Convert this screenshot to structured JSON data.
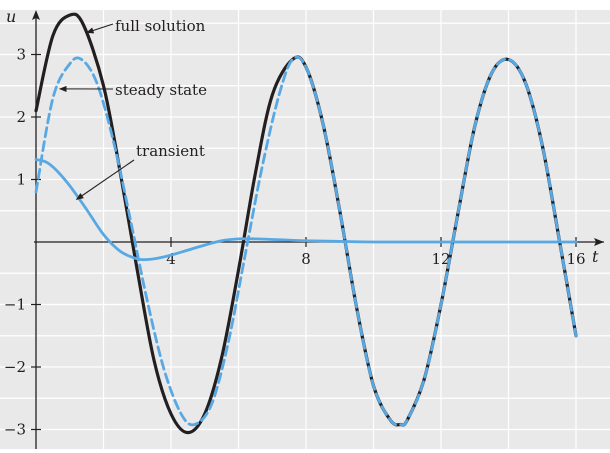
{
  "chart_data": {
    "type": "line",
    "title": "",
    "xlabel": "t",
    "ylabel": "u",
    "xlim": [
      0,
      16.8
    ],
    "ylim": [
      -3.3,
      3.6
    ],
    "x_ticks": [
      4,
      8,
      12,
      16
    ],
    "y_ticks": [
      -3,
      -2,
      -1,
      1,
      2,
      3
    ],
    "x_tick_labels": [
      "4",
      "8",
      "12",
      "16"
    ],
    "y_tick_labels": [
      "−3",
      "−2",
      "−1",
      "1",
      "2",
      "3"
    ],
    "grid": true,
    "colors": {
      "background": "#e9e9ea",
      "grid": "#ffffff",
      "full_solution": "#231f20",
      "steady_state": "#58a9e3",
      "transient": "#58a9e3",
      "axis": "#231f20"
    },
    "series": [
      {
        "name": "full solution",
        "style": "solid-black",
        "x": [
          0,
          0.5,
          1.0,
          1.4,
          2.0,
          2.5,
          3.0,
          3.5,
          4.0,
          4.5,
          5.0,
          5.5,
          6.0,
          6.5,
          7.0,
          7.6,
          8.0,
          8.5,
          9.0,
          9.5,
          10.0,
          10.5,
          10.8,
          11.0,
          11.5,
          12.0,
          12.5,
          13.0,
          13.5,
          14.0,
          14.5,
          15.0,
          15.5,
          16.0
        ],
        "y": [
          2.1,
          3.3,
          3.63,
          3.48,
          2.5,
          1.1,
          -0.45,
          -1.9,
          -2.75,
          -3.05,
          -2.75,
          -1.85,
          -0.45,
          1.1,
          2.35,
          2.92,
          2.8,
          1.9,
          0.5,
          -1.05,
          -2.3,
          -2.85,
          -2.92,
          -2.85,
          -2.2,
          -1.0,
          0.45,
          1.85,
          2.7,
          2.92,
          2.55,
          1.55,
          0.05,
          -1.5
        ]
      },
      {
        "name": "steady state",
        "style": "dashed-blue",
        "x": [
          0,
          0.5,
          1.0,
          1.35,
          1.8,
          2.3,
          2.8,
          3.3,
          3.8,
          4.3,
          4.7,
          5.2,
          5.7,
          6.2,
          6.7,
          7.2,
          7.6,
          8.0,
          8.5,
          9.0,
          9.5,
          10.0,
          10.5,
          10.8,
          11.0,
          11.5,
          12.0,
          12.5,
          13.0,
          13.5,
          14.0,
          14.5,
          15.0,
          15.5,
          16.0
        ],
        "y": [
          0.8,
          2.3,
          2.85,
          2.92,
          2.55,
          1.6,
          0.35,
          -0.95,
          -2.05,
          -2.75,
          -2.92,
          -2.6,
          -1.6,
          -0.2,
          1.2,
          2.35,
          2.92,
          2.8,
          1.9,
          0.5,
          -1.05,
          -2.3,
          -2.85,
          -2.92,
          -2.85,
          -2.2,
          -1.0,
          0.45,
          1.85,
          2.7,
          2.92,
          2.55,
          1.55,
          0.05,
          -1.5
        ]
      },
      {
        "name": "transient",
        "style": "solid-blue",
        "x": [
          0,
          0.3,
          0.6,
          1.0,
          1.5,
          2.0,
          2.5,
          3.0,
          3.3,
          3.6,
          4.0,
          4.5,
          5.0,
          5.5,
          6.0,
          6.5,
          7.0,
          7.5,
          8.0,
          9.0,
          10.0,
          12.0,
          14.0,
          16.0
        ],
        "y": [
          1.32,
          1.28,
          1.15,
          0.9,
          0.52,
          0.12,
          -0.15,
          -0.27,
          -0.28,
          -0.26,
          -0.21,
          -0.13,
          -0.05,
          0.02,
          0.05,
          0.05,
          0.04,
          0.03,
          0.02,
          0.01,
          0.0,
          0.0,
          0.0,
          0.0
        ]
      }
    ],
    "annotations": [
      {
        "text": "full solution",
        "points_to": [
          1.5,
          3.35
        ]
      },
      {
        "text": "steady state",
        "points_to": [
          0.7,
          2.45
        ]
      },
      {
        "text": "transient",
        "points_to": [
          1.2,
          0.68
        ]
      }
    ]
  }
}
